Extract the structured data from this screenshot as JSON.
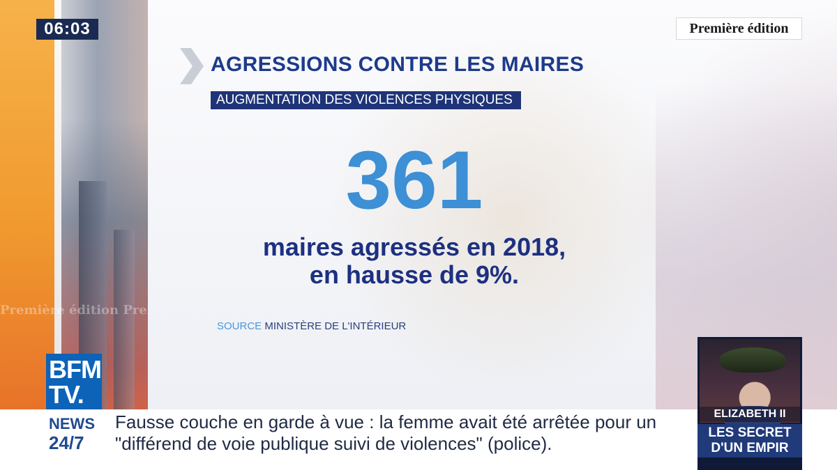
{
  "clock": "06:03",
  "program": "Première édition",
  "background": {
    "ghost_text": "Première édition  Premi"
  },
  "graphic": {
    "headline": "AGRESSIONS CONTRE LES MAIRES",
    "subhead": "AUGMENTATION DES VIOLENCES PHYSIQUES",
    "big_number": "361",
    "caption_line1": "maires agressés en 2018,",
    "caption_line2": "en hausse de 9%.",
    "source_label": "SOURCE",
    "source_value": "MINISTÈRE DE L'INTÉRIEUR",
    "number_color": "#3d8fd6",
    "headline_color": "#1d3b8c"
  },
  "logo": {
    "line1": "BFM",
    "line2": "TV.",
    "color": "#0d63b8"
  },
  "ticker": {
    "tag_line1": "NEWS",
    "tag_line2": "24/7",
    "line1": "Fausse couche en garde à vue : la femme avait été arrêtée pour un",
    "line2": "\"différend de voie publique suivi de violences\" (police)."
  },
  "promo": {
    "name": "ELIZABETH II",
    "title_line1": "LES SECRET",
    "title_line2": "D'UN EMPIR"
  }
}
